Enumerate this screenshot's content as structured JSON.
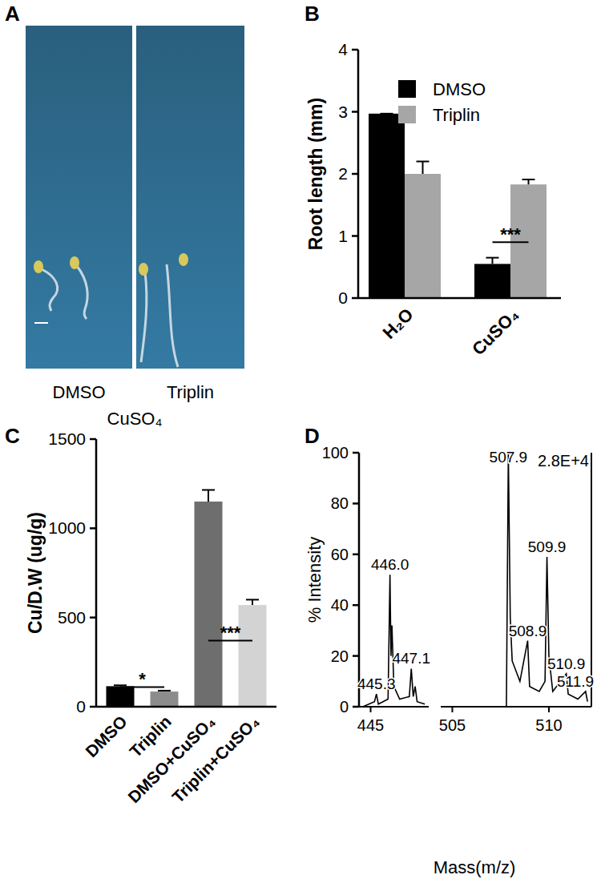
{
  "chart_data": [
    {
      "type": "image",
      "panel": "A",
      "labels": [
        "DMSO",
        "Triplin"
      ],
      "caption": "CuSO₄"
    },
    {
      "type": "bar",
      "panel": "B",
      "y_label": "Root length (mm)",
      "categories": [
        "H₂O",
        "CuSO₄"
      ],
      "series": [
        {
          "name": "DMSO",
          "color": "#000000",
          "values": [
            2.97,
            0.55
          ],
          "errors": [
            0,
            0.1
          ]
        },
        {
          "name": "Triplin",
          "color": "#a6a6a6",
          "values": [
            2.0,
            1.83
          ],
          "errors": [
            0.2,
            0.08
          ]
        }
      ],
      "ylim": [
        0,
        4
      ],
      "yticks": [
        0,
        1,
        2,
        3,
        4
      ],
      "legend": "top",
      "annotations": [
        {
          "text": "***",
          "categories": [
            1,
            1
          ],
          "y": 0.9
        }
      ]
    },
    {
      "type": "bar",
      "panel": "C",
      "y_label": "Cu/D.W (ug/g)",
      "categories": [
        "DMSO",
        "Triplin",
        "DMSO+CuSO₄",
        "Triplin+CuSO₄"
      ],
      "values": [
        115,
        85,
        1150,
        570
      ],
      "errors": [
        5,
        5,
        65,
        30
      ],
      "colors": [
        "#000000",
        "#8c8c8c",
        "#6e6e6e",
        "#d3d3d3"
      ],
      "ylim": [
        0,
        1500
      ],
      "yticks": [
        0,
        500,
        1000,
        1500
      ],
      "annotations": [
        {
          "text": "*",
          "categories": [
            0,
            1
          ],
          "y": 110
        },
        {
          "text": "***",
          "categories": [
            2,
            3
          ],
          "y": 370
        }
      ]
    },
    {
      "type": "line",
      "panel": "D",
      "y_label": "% Intensity",
      "x_label": "Mass(m/z)",
      "intensity_label": "2.8E+4",
      "color": "#000000",
      "ylim": [
        0,
        100
      ],
      "yticks": [
        0,
        20,
        40,
        60,
        80,
        100
      ],
      "segments": [
        {
          "xlim": [
            444.4,
            448.0
          ],
          "xticks": [
            445
          ],
          "x": [
            444.6,
            445.2,
            445.3,
            445.4,
            445.9,
            446.0,
            446.05,
            446.1,
            446.2,
            446.5,
            447.0,
            447.1,
            447.2,
            447.3,
            447.4,
            447.8
          ],
          "values": [
            0,
            2,
            5,
            1,
            3,
            52,
            20,
            32,
            8,
            3,
            4,
            15,
            4,
            8,
            2,
            1
          ],
          "annotations": [
            {
              "x": 445.3,
              "y": 5,
              "text": "445.3"
            },
            {
              "x": 446.0,
              "y": 52,
              "text": "446.0"
            },
            {
              "x": 447.1,
              "y": 15,
              "text": "447.1"
            }
          ]
        },
        {
          "xlim": [
            504.4,
            512.2
          ],
          "xticks": [
            505,
            510
          ],
          "x": [
            504.5,
            507.8,
            507.9,
            508.0,
            508.1,
            508.5,
            508.9,
            509.0,
            509.5,
            509.8,
            509.9,
            510.0,
            510.2,
            510.9,
            511.0,
            511.5,
            511.9,
            512.0
          ],
          "values": [
            0,
            0,
            100,
            35,
            18,
            10,
            26,
            8,
            6,
            10,
            59,
            20,
            6,
            13,
            5,
            3,
            6,
            2
          ],
          "annotations": [
            {
              "x": 507.9,
              "y": 100,
              "text": "507.9"
            },
            {
              "x": 508.9,
              "y": 26,
              "text": "508.9"
            },
            {
              "x": 509.9,
              "y": 59,
              "text": "509.9"
            },
            {
              "x": 510.9,
              "y": 13,
              "text": "510.9"
            },
            {
              "x": 511.9,
              "y": 6,
              "text": "511.9"
            }
          ]
        }
      ]
    }
  ]
}
